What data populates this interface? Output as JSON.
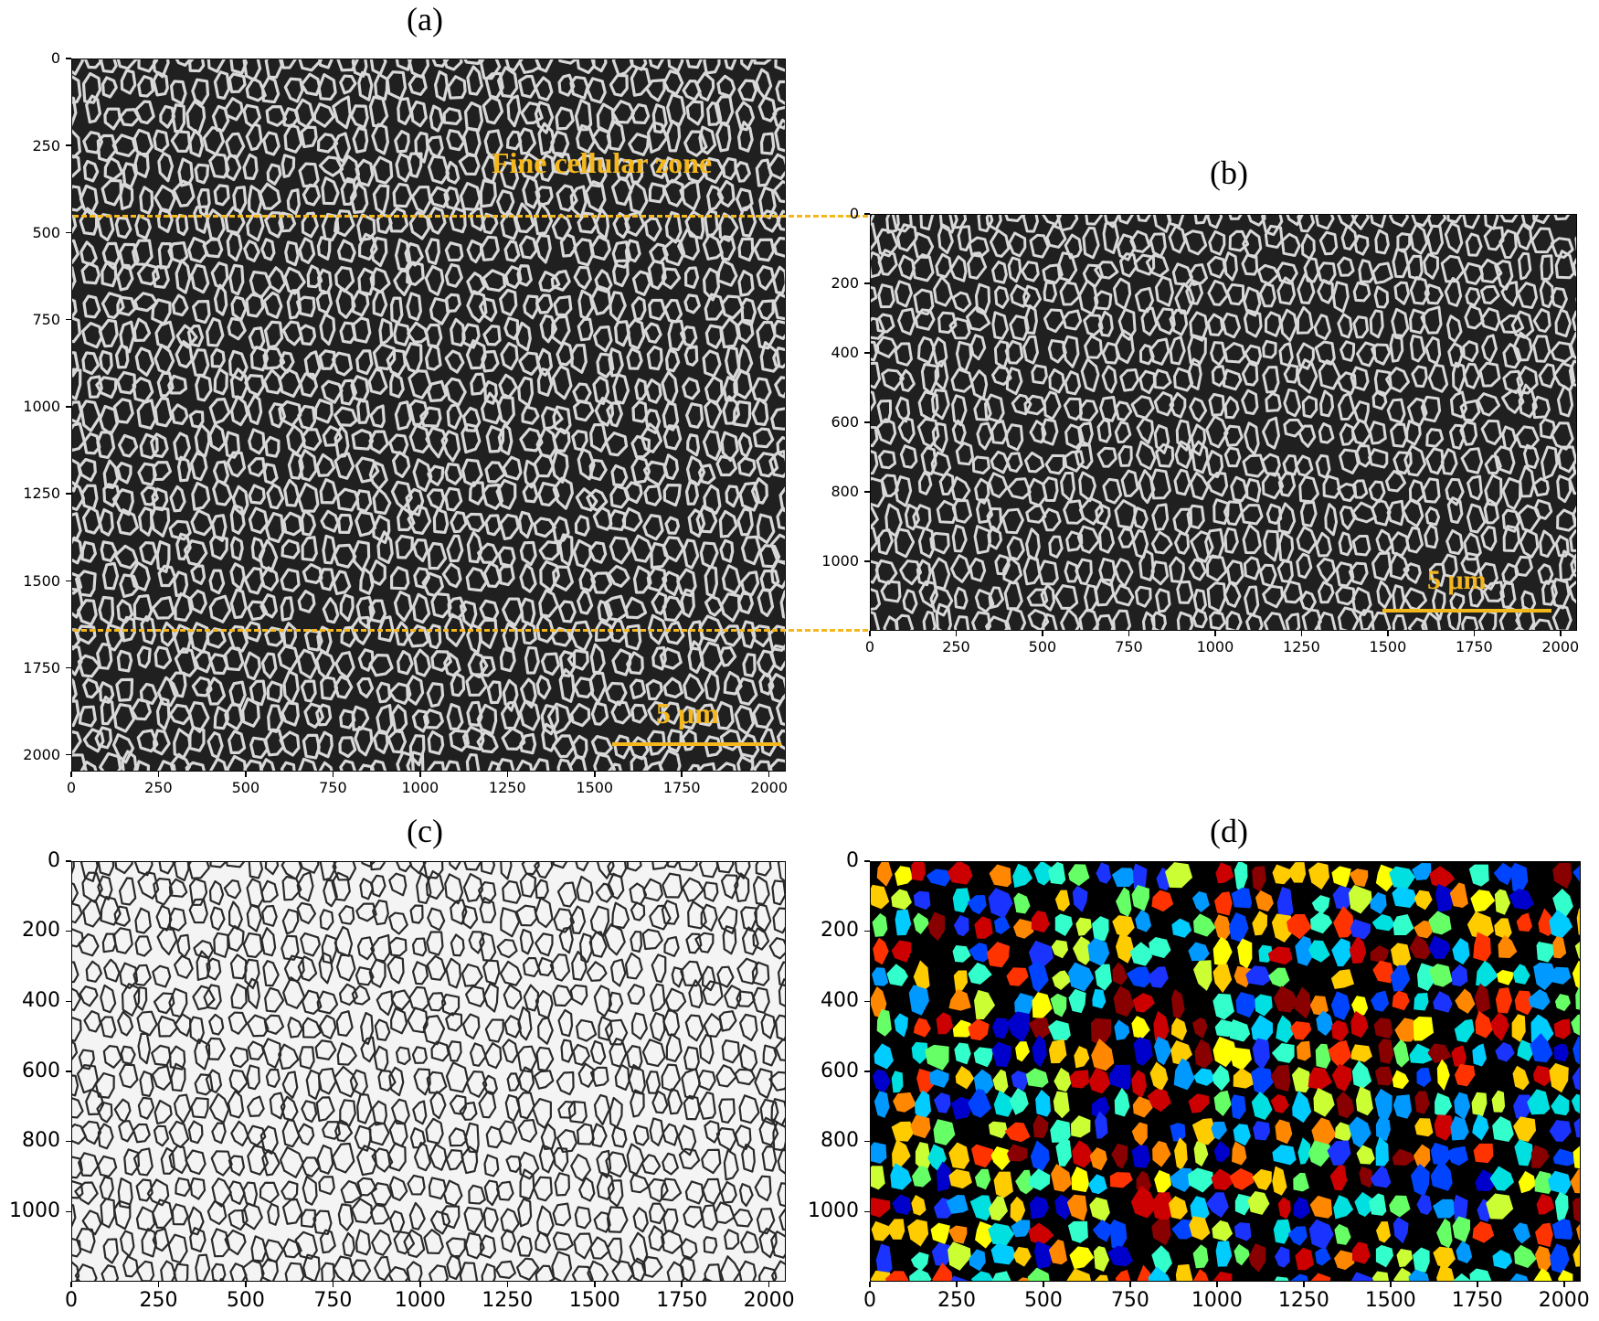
{
  "colors": {
    "annotation": "#f5b81c",
    "background": "#000000"
  },
  "panels": {
    "a": {
      "label": "(a)",
      "x_ticks": [
        "0",
        "250",
        "500",
        "750",
        "1000",
        "1250",
        "1500",
        "1750",
        "2000"
      ],
      "y_ticks": [
        "0",
        "250",
        "500",
        "750",
        "1000",
        "1250",
        "1500",
        "1750",
        "2000"
      ],
      "zone_label": "Fine cellular zone",
      "scale_label": "5 μm"
    },
    "b": {
      "label": "(b)",
      "x_ticks": [
        "0",
        "250",
        "500",
        "750",
        "1000",
        "1250",
        "1500",
        "1750",
        "2000"
      ],
      "y_ticks": [
        "0",
        "200",
        "400",
        "600",
        "800",
        "1000"
      ],
      "scale_label": "5 μm"
    },
    "c": {
      "label": "(c)",
      "x_ticks": [
        "0",
        "250",
        "500",
        "750",
        "1000",
        "1250",
        "1500",
        "1750",
        "2000"
      ],
      "y_ticks": [
        "0",
        "200",
        "400",
        "600",
        "800",
        "1000"
      ]
    },
    "d": {
      "label": "(d)",
      "x_ticks": [
        "0",
        "250",
        "500",
        "750",
        "1000",
        "1250",
        "1500",
        "1750",
        "2000"
      ],
      "y_ticks": [
        "0",
        "200",
        "400",
        "600",
        "800",
        "1000"
      ]
    }
  }
}
